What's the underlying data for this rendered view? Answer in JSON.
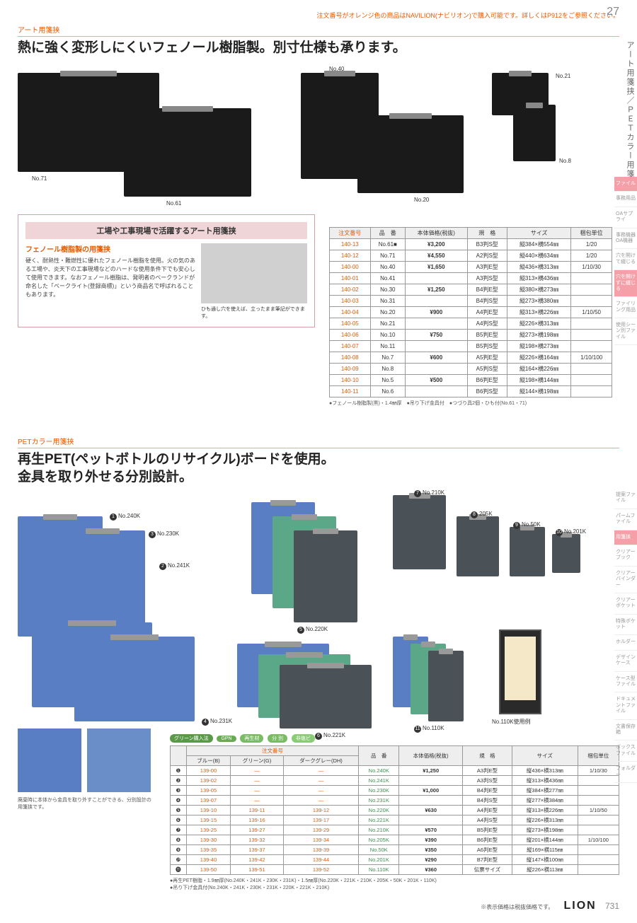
{
  "page_num_top": "27",
  "top_note": "注文番号がオレンジ色の商品はNAVILION(ナビリオン)で購入可能です。詳しくはP912をご参照ください。",
  "side_tab": "アート用箋挟／ＰＥＴカラー用箋挟",
  "side_cats": [
    "ファイル",
    "事務用品",
    "OAサプライ",
    "事務機器OA機器",
    "穴を開けて綴じる",
    "穴を開けずに綴じる",
    "ファイリング用品",
    "使用シーン別ファイル"
  ],
  "side_cats2": [
    "提案ファイル",
    "パームファイル",
    "用箋挟",
    "クリアーブック",
    "クリアーバインダー",
    "クリアーポケット",
    "特殊ポケット",
    "ホルダー",
    "デザインケース",
    "ケース型ファイル",
    "ドキュメントファイル",
    "文書保存箱",
    "ボックスファイル",
    "フォルダー"
  ],
  "sec1": {
    "label": "アート用箋挟",
    "headline": "熱に強く変形しにくいフェノール樹脂製。別寸仕様も承ります。",
    "labels": [
      "No.71",
      "No.61",
      "No.40",
      "No.20",
      "No.21",
      "No.8"
    ],
    "info_title": "工場や工事現場で活躍するアート用箋挟",
    "info_sub": "フェノール樹脂製の用箋挟",
    "info_text": "硬く、耐熱性・難燃性に優れたフェノール樹脂を使用。火の気のある工場や、炎天下の工事現場などのハードな使用条件下でも安心して使用できます。なおフェノール樹脂は、発明者のベークランドが命名した「ベークライト(登録商標)」という商品名で呼ばれることもあります。",
    "info_cap": "ひも通し穴を使えば、立ったまま筆記ができます。",
    "headers": [
      "注文番号",
      "品　番",
      "本体価格(税抜)",
      "規　格",
      "サイズ",
      "梱包単位"
    ],
    "rows": [
      [
        "140-13",
        "No.61■",
        "¥3,200",
        "B3判S型",
        "縦384×横554㎜",
        "1/20"
      ],
      [
        "140-12",
        "No.71",
        "¥4,550",
        "A2判S型",
        "縦440×横634㎜",
        "1/20"
      ],
      [
        "140-00",
        "No.40",
        "¥1,650",
        "A3判E型",
        "縦436×横313㎜",
        "1/10/30"
      ],
      [
        "140-01",
        "No.41",
        "",
        "A3判S型",
        "縦313×横436㎜",
        ""
      ],
      [
        "140-02",
        "No.30",
        "¥1,250",
        "B4判E型",
        "縦380×横273㎜",
        ""
      ],
      [
        "140-03",
        "No.31",
        "",
        "B4判S型",
        "縦273×横380㎜",
        ""
      ],
      [
        "140-04",
        "No.20",
        "¥900",
        "A4判E型",
        "縦313×横226㎜",
        "1/10/50"
      ],
      [
        "140-05",
        "No.21",
        "",
        "A4判S型",
        "縦226×横313㎜",
        ""
      ],
      [
        "140-06",
        "No.10",
        "¥750",
        "B5判E型",
        "縦273×横198㎜",
        ""
      ],
      [
        "140-07",
        "No.11",
        "",
        "B5判S型",
        "縦198×横273㎜",
        ""
      ],
      [
        "140-08",
        "No.7",
        "¥600",
        "A5判E型",
        "縦226×横164㎜",
        "1/10/100"
      ],
      [
        "140-09",
        "No.8",
        "",
        "A5判S型",
        "縦164×横226㎜",
        ""
      ],
      [
        "140-10",
        "No.5",
        "¥500",
        "B6判E型",
        "縦198×横144㎜",
        ""
      ],
      [
        "140-11",
        "No.6",
        "",
        "B6判S型",
        "縦144×横198㎜",
        ""
      ]
    ],
    "notes": "●フェノール樹脂製(黒)・1.4㎜厚　●吊り下げ金具付　●つづり具2個・ひも付(No.61・71)"
  },
  "sec2": {
    "label": "PETカラー用箋挟",
    "headline": "再生PET(ペットボトルのリサイクル)ボードを使用。\n金具を取り外せる分別設計。",
    "num_labels": [
      "No.240K",
      "No.230K",
      "No.241K",
      "No.231K",
      "No.220K",
      "No.221K",
      "No.210K",
      "205K",
      "No.50K",
      "No.201K",
      "No.110K",
      "No.110K使用例"
    ],
    "badges": [
      "グリーン購入法",
      "GPN",
      "再生材",
      "分 別",
      "非塩ビ"
    ],
    "detail_cap": "廃棄時に本体から金具を取り外すことができる、分別設計の用箋挟です。",
    "h1": [
      "",
      "注文番号",
      "",
      "",
      "",
      "",
      "",
      ""
    ],
    "h2": [
      "",
      "ブルー(B)",
      "グリーン(G)",
      "ダークグレー(DH)",
      "品　番",
      "本体価格(税抜)",
      "規　格",
      "サイズ",
      "梱包単位"
    ],
    "rows": [
      [
        "❶",
        "139-00",
        "—",
        "—",
        "No.240K",
        "¥1,250",
        "A3判E型",
        "縦436×横313㎜",
        "1/10/30"
      ],
      [
        "❷",
        "139-02",
        "—",
        "—",
        "No.241K",
        "",
        "A3判S型",
        "縦313×横436㎜",
        ""
      ],
      [
        "❸",
        "139-05",
        "—",
        "—",
        "No.230K",
        "¥1,000",
        "B4判E型",
        "縦384×横277㎜",
        ""
      ],
      [
        "❹",
        "139-07",
        "—",
        "—",
        "No.231K",
        "",
        "B4判S型",
        "縦277×横384㎜",
        ""
      ],
      [
        "❺",
        "139-10",
        "139-11",
        "139-12",
        "No.220K",
        "¥630",
        "A4判E型",
        "縦313×横226㎜",
        "1/10/50"
      ],
      [
        "❻",
        "139-15",
        "139-16",
        "139-17",
        "No.221K",
        "",
        "A4判S型",
        "縦226×横313㎜",
        ""
      ],
      [
        "❼",
        "139-25",
        "139-27",
        "139-29",
        "No.210K",
        "¥570",
        "B5判E型",
        "縦273×横198㎜",
        ""
      ],
      [
        "❽",
        "139-30",
        "139-32",
        "139-34",
        "No.205K",
        "¥390",
        "B6判E型",
        "縦201×横144㎜",
        "1/10/100"
      ],
      [
        "❾",
        "139-35",
        "139-37",
        "139-39",
        "No.50K",
        "¥350",
        "A6判E型",
        "縦169×横115㎜",
        ""
      ],
      [
        "❿",
        "139-40",
        "139-42",
        "139-44",
        "No.201K",
        "¥290",
        "B7判E型",
        "縦147×横100㎜",
        ""
      ],
      [
        "⓫",
        "139-50",
        "139-51",
        "139-52",
        "No.110K",
        "¥360",
        "伝票サイズ",
        "縦226×横113㎜",
        ""
      ]
    ],
    "notes": "●再生PET樹脂・1.9㎜厚(No.240K・241K・230K・231K)・1.5㎜厚(No.220K・221K・210K・205K・50K・201K・110K)\n●吊り下げ金具付(No.240K・241K・230K・231K・220K・221K・210K)"
  },
  "footer_note": "※表示価格は税抜価格です。",
  "footer_logo": "LION",
  "footer_pg": "731"
}
